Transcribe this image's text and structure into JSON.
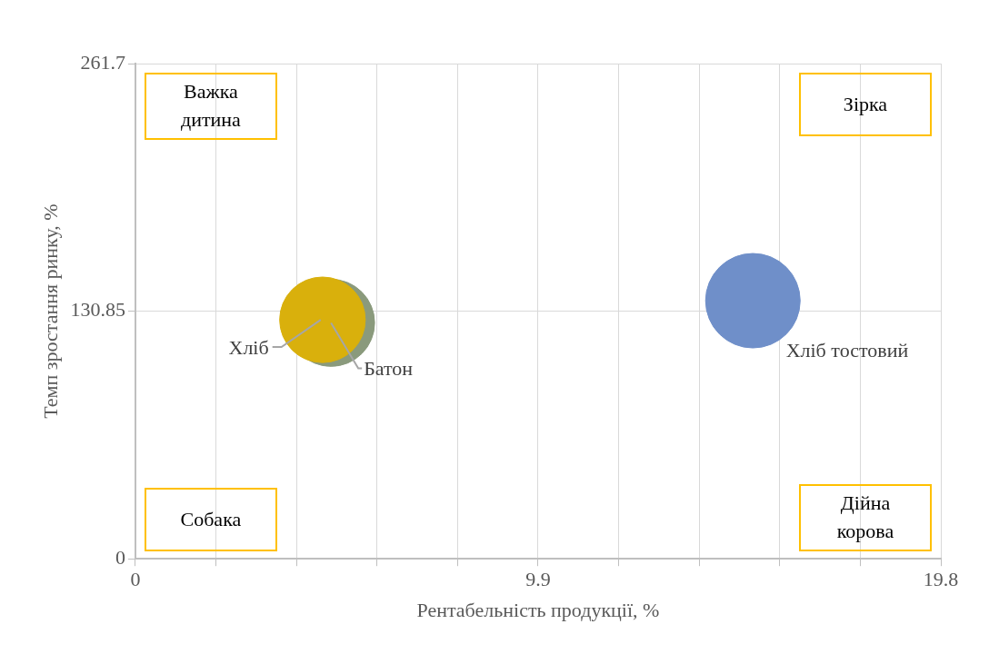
{
  "chart_data": {
    "type": "bubble",
    "xlabel": "Рентабельність продукції, %",
    "ylabel": "Темп зростання ринку, %",
    "series": [
      {
        "name": "Хліб",
        "color": "#d9b00c",
        "x": [
          4.6
        ],
        "values": [
          126.3
        ],
        "sizes": [
          0.82
        ]
      },
      {
        "name": "Батон",
        "color": "#8a9a7c",
        "x": [
          4.81
        ],
        "values": [
          124.7
        ],
        "sizes": [
          0.85
        ]
      },
      {
        "name": "Хліб тостовий",
        "color": "#6f8fc9",
        "x": [
          15.18
        ],
        "values": [
          136.4
        ],
        "sizes": [
          1
        ]
      }
    ],
    "xlim": [
      0,
      19.8
    ],
    "xticks": [
      0,
      {
        "value": 1.98,
        "label": null
      },
      {
        "value": 3.96,
        "label": null
      },
      {
        "value": 5.94,
        "label": null
      },
      {
        "value": 7.92,
        "label": null
      },
      9.9,
      {
        "value": 11.88,
        "label": null
      },
      {
        "value": 13.86,
        "label": null
      },
      {
        "value": 15.84,
        "label": null
      },
      {
        "value": 17.82,
        "label": null
      },
      19.8
    ],
    "ylim": [
      0,
      261.7
    ],
    "yticks": [
      0,
      130.85,
      261.7
    ],
    "annotations": [
      "Важка дитина",
      "Зірка",
      "Собака",
      "Дійна корова"
    ],
    "grid": true,
    "legend": false
  }
}
